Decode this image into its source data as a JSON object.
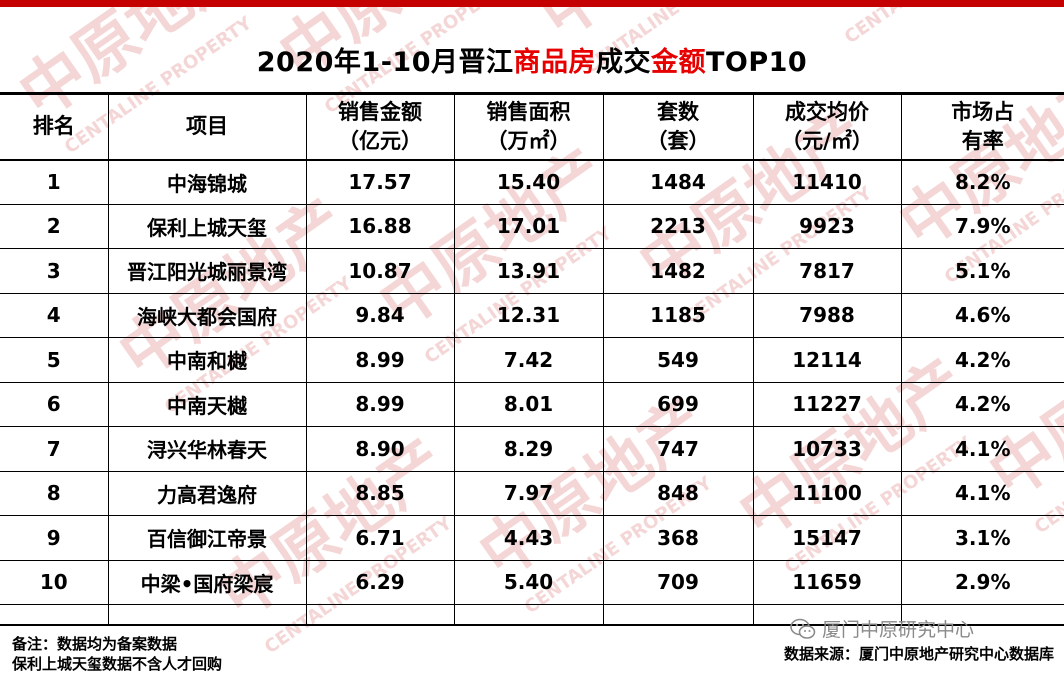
{
  "title": {
    "part1": "2020年1-10月晋江",
    "part2": "商品房",
    "part3": "成交",
    "part4": "金额",
    "part5": "TOP10"
  },
  "colors": {
    "accent_red": "#e60000",
    "rule_red": "#c40000",
    "watermark": "#f4d6d6"
  },
  "watermark": {
    "brand": "中原地产",
    "english": "CENTALINE PROPERTY"
  },
  "table": {
    "headers": [
      {
        "line1": "排名",
        "line2": ""
      },
      {
        "line1": "项目",
        "line2": ""
      },
      {
        "line1": "销售金额",
        "line2": "（亿元）"
      },
      {
        "line1": "销售面积",
        "line2": "（万㎡）"
      },
      {
        "line1": "套数",
        "line2": "（套）"
      },
      {
        "line1": "成交均价",
        "line2": "（元/㎡）"
      },
      {
        "line1": "市场占",
        "line2": "有率"
      }
    ],
    "rows": [
      [
        "1",
        "中海锦城",
        "17.57",
        "15.40",
        "1484",
        "11410",
        "8.2%"
      ],
      [
        "2",
        "保利上城天玺",
        "16.88",
        "17.01",
        "2213",
        "9923",
        "7.9%"
      ],
      [
        "3",
        "晋江阳光城丽景湾",
        "10.87",
        "13.91",
        "1482",
        "7817",
        "5.1%"
      ],
      [
        "4",
        "海峡大都会国府",
        "9.84",
        "12.31",
        "1185",
        "7988",
        "4.6%"
      ],
      [
        "5",
        "中南和樾",
        "8.99",
        "7.42",
        "549",
        "12114",
        "4.2%"
      ],
      [
        "6",
        "中南天樾",
        "8.99",
        "8.01",
        "699",
        "11227",
        "4.2%"
      ],
      [
        "7",
        "浔兴华林春天",
        "8.90",
        "8.29",
        "747",
        "10733",
        "4.1%"
      ],
      [
        "8",
        "力高君逸府",
        "8.85",
        "7.97",
        "848",
        "11100",
        "4.1%"
      ],
      [
        "9",
        "百信御江帝景",
        "6.71",
        "4.43",
        "368",
        "15147",
        "3.1%"
      ],
      [
        "10",
        "中梁•国府梁宸",
        "6.29",
        "5.40",
        "709",
        "11659",
        "2.9%"
      ]
    ]
  },
  "notes": {
    "line1": "备注：数据均为备案数据",
    "line2": "保利上城天玺数据不含人才回购"
  },
  "wechat": {
    "icon": "wechat-icon",
    "account": "厦门中原研究中心"
  },
  "source": "数据来源：厦门中原地产研究中心数据库"
}
